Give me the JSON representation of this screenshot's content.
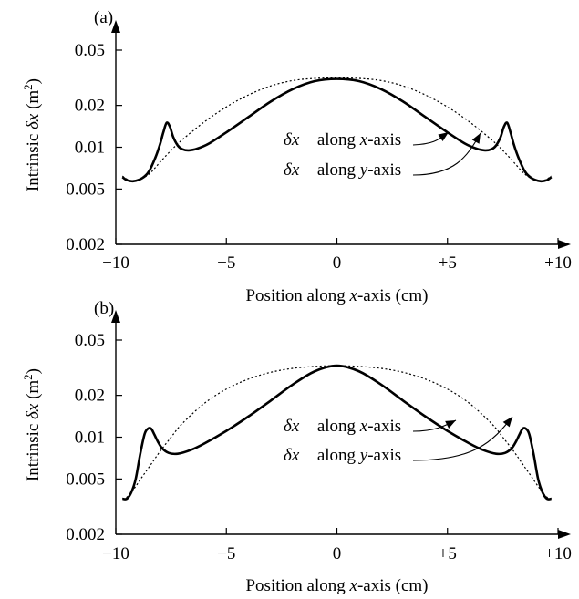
{
  "chart_data": [
    {
      "panel_label": "(a)",
      "type": "line",
      "ylabel": "Intrinsic δx (m²)",
      "xlabel": "Position along x-axis (cm)",
      "yscale": "log",
      "xlim": [
        -10,
        10
      ],
      "ylim": [
        0.002,
        0.07
      ],
      "xticks": [
        -10,
        -5,
        0,
        5,
        10
      ],
      "xtick_labels": [
        "−10",
        "−5",
        "0",
        "+5",
        "+10"
      ],
      "yticks": [
        0.002,
        0.005,
        0.01,
        0.02,
        0.05
      ],
      "ytick_labels": [
        "0.002",
        "0.005",
        "0.01",
        "0.02",
        "0.05"
      ],
      "grid": false,
      "series": [
        {
          "name": "δx⃗ along x-axis",
          "style": "solid",
          "x": [
            -9.7,
            -9.5,
            -9.2,
            -8.8,
            -8.5,
            -8.2,
            -8.0,
            -7.85,
            -7.7,
            -7.55,
            -7.4,
            -7.2,
            -7.0,
            -6.7,
            -6.3,
            -5.8,
            -5.0,
            -4.0,
            -3.0,
            -2.0,
            -1.0,
            0,
            1.0,
            2.0,
            3.0,
            4.0,
            5.0,
            5.8,
            6.3,
            6.7,
            7.0,
            7.2,
            7.4,
            7.55,
            7.7,
            7.85,
            8.0,
            8.2,
            8.5,
            8.8,
            9.2,
            9.5,
            9.7
          ],
          "y": [
            0.0061,
            0.0058,
            0.0057,
            0.006,
            0.0067,
            0.0085,
            0.0105,
            0.0128,
            0.015,
            0.014,
            0.0118,
            0.0103,
            0.0097,
            0.0095,
            0.0098,
            0.0106,
            0.0128,
            0.0165,
            0.0213,
            0.0262,
            0.0299,
            0.031,
            0.0299,
            0.0262,
            0.0213,
            0.0165,
            0.0128,
            0.0106,
            0.0098,
            0.0095,
            0.0097,
            0.0103,
            0.0118,
            0.014,
            0.015,
            0.0128,
            0.0105,
            0.0085,
            0.0067,
            0.006,
            0.0057,
            0.0058,
            0.0061
          ]
        },
        {
          "name": "δx⃗ along y-axis",
          "style": "dotted",
          "x": [
            -9.7,
            -9.4,
            -9.0,
            -8.5,
            -8.0,
            -7.5,
            -7.0,
            -6.0,
            -5.0,
            -4.0,
            -3.0,
            -2.0,
            -1.0,
            0,
            1.0,
            2.0,
            3.0,
            4.0,
            5.0,
            6.0,
            7.0,
            7.5,
            8.0,
            8.5,
            9.0,
            9.4,
            9.7
          ],
          "y": [
            0.0062,
            0.0058,
            0.0058,
            0.0064,
            0.0078,
            0.0095,
            0.0113,
            0.0152,
            0.0195,
            0.0238,
            0.0276,
            0.0302,
            0.0313,
            0.0315,
            0.0313,
            0.0302,
            0.0276,
            0.0238,
            0.0195,
            0.0152,
            0.0113,
            0.0095,
            0.0078,
            0.0064,
            0.0058,
            0.0058,
            0.0062
          ]
        }
      ],
      "annotations": [
        {
          "prefix": "δx⃗",
          "text": " along ",
          "axis_var": "x",
          "axis_suffix": "-axis"
        },
        {
          "prefix": "δx⃗",
          "text": " along ",
          "axis_var": "y",
          "axis_suffix": "-axis"
        }
      ]
    },
    {
      "panel_label": "(b)",
      "type": "line",
      "ylabel": "Intrinsic δx (m²)",
      "xlabel": "Position along x-axis (cm)",
      "yscale": "log",
      "xlim": [
        -10,
        10
      ],
      "ylim": [
        0.002,
        0.07
      ],
      "xticks": [
        -10,
        -5,
        0,
        5,
        10
      ],
      "xtick_labels": [
        "−10",
        "−5",
        "0",
        "+5",
        "+10"
      ],
      "yticks": [
        0.002,
        0.005,
        0.01,
        0.02,
        0.05
      ],
      "ytick_labels": [
        "0.002",
        "0.005",
        "0.01",
        "0.02",
        "0.05"
      ],
      "grid": false,
      "series": [
        {
          "name": "δx⃗ along x-axis",
          "style": "solid",
          "x": [
            -9.7,
            -9.5,
            -9.3,
            -9.1,
            -8.9,
            -8.7,
            -8.55,
            -8.4,
            -8.25,
            -8.1,
            -7.9,
            -7.6,
            -7.2,
            -6.6,
            -6.0,
            -5.0,
            -4.0,
            -3.0,
            -2.0,
            -1.0,
            0,
            1.0,
            2.0,
            3.0,
            4.0,
            5.0,
            6.0,
            6.6,
            7.2,
            7.6,
            7.9,
            8.1,
            8.25,
            8.4,
            8.55,
            8.7,
            8.9,
            9.1,
            9.3,
            9.5,
            9.7
          ],
          "y": [
            0.0036,
            0.0036,
            0.004,
            0.005,
            0.0075,
            0.0105,
            0.0115,
            0.0115,
            0.0104,
            0.0093,
            0.0083,
            0.0077,
            0.0076,
            0.0081,
            0.009,
            0.0111,
            0.0141,
            0.0183,
            0.0239,
            0.0298,
            0.0327,
            0.0298,
            0.0239,
            0.0183,
            0.0141,
            0.0111,
            0.009,
            0.0081,
            0.0076,
            0.0077,
            0.0083,
            0.0093,
            0.0104,
            0.0115,
            0.0115,
            0.0105,
            0.0075,
            0.005,
            0.004,
            0.0036,
            0.0036
          ]
        },
        {
          "name": "δx⃗ along y-axis",
          "style": "dotted",
          "x": [
            -9.7,
            -9.5,
            -9.2,
            -8.8,
            -8.4,
            -8.0,
            -7.5,
            -7.0,
            -6.0,
            -5.0,
            -4.0,
            -3.0,
            -2.0,
            -1.0,
            0,
            1.0,
            2.0,
            3.0,
            4.0,
            5.0,
            6.0,
            7.0,
            7.5,
            8.0,
            8.4,
            8.8,
            9.2,
            9.5,
            9.7
          ],
          "y": [
            0.0036,
            0.0037,
            0.0042,
            0.0052,
            0.0064,
            0.0079,
            0.01,
            0.0125,
            0.0175,
            0.0222,
            0.0262,
            0.0293,
            0.0313,
            0.0323,
            0.0327,
            0.0323,
            0.0313,
            0.0293,
            0.0262,
            0.0222,
            0.0175,
            0.0125,
            0.01,
            0.0079,
            0.0064,
            0.0052,
            0.0042,
            0.0037,
            0.0036
          ]
        }
      ],
      "annotations": [
        {
          "prefix": "δx⃗",
          "text": " along ",
          "axis_var": "x",
          "axis_suffix": "-axis"
        },
        {
          "prefix": "δx⃗",
          "text": " along ",
          "axis_var": "y",
          "axis_suffix": "-axis"
        }
      ]
    }
  ]
}
